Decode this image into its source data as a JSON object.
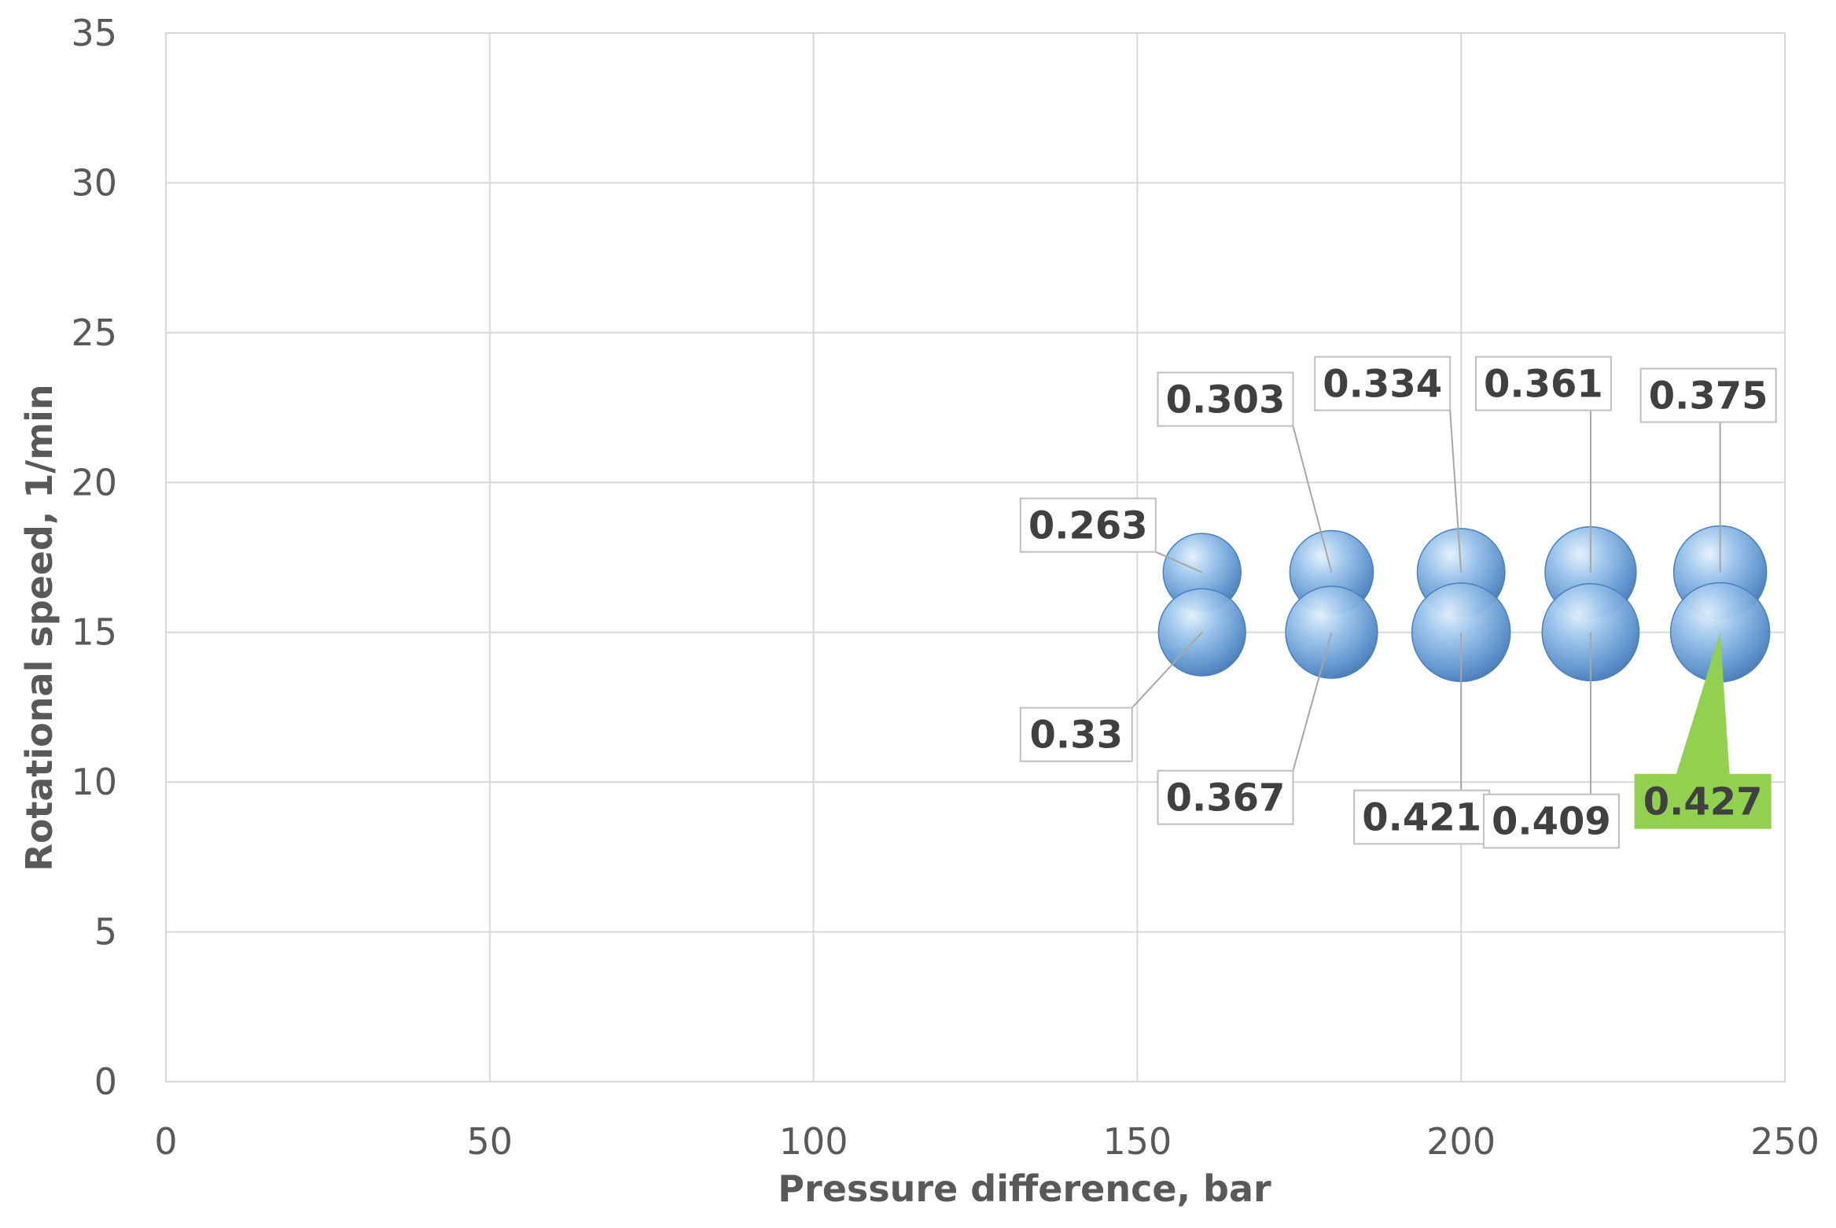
{
  "chart_data": {
    "type": "bubble",
    "xlabel": "Pressure difference, bar",
    "ylabel": "Rotational speed, 1/min",
    "xlim": [
      0,
      250
    ],
    "ylim": [
      0,
      35
    ],
    "x_ticks": [
      0,
      50,
      100,
      150,
      200,
      250
    ],
    "y_ticks": [
      0,
      5,
      10,
      15,
      20,
      25,
      30,
      35
    ],
    "grid": true,
    "legend": "none",
    "bubble_color": "#7fb2e5",
    "highlight_color": "#92d050",
    "series": [
      {
        "points": [
          {
            "x": 160,
            "y": 17,
            "size": 0.263,
            "label": "0.263"
          },
          {
            "x": 180,
            "y": 17,
            "size": 0.303,
            "label": "0.303"
          },
          {
            "x": 200,
            "y": 17,
            "size": 0.334,
            "label": "0.334"
          },
          {
            "x": 220,
            "y": 17,
            "size": 0.361,
            "label": "0.361"
          },
          {
            "x": 240,
            "y": 17,
            "size": 0.375,
            "label": "0.375"
          }
        ]
      },
      {
        "points": [
          {
            "x": 160,
            "y": 15,
            "size": 0.33,
            "label": "0.33"
          },
          {
            "x": 180,
            "y": 15,
            "size": 0.367,
            "label": "0.367"
          },
          {
            "x": 200,
            "y": 15,
            "size": 0.421,
            "label": "0.421"
          },
          {
            "x": 220,
            "y": 15,
            "size": 0.409,
            "label": "0.409"
          },
          {
            "x": 240,
            "y": 15,
            "size": 0.427,
            "label": "0.427",
            "highlight": true
          }
        ]
      }
    ]
  }
}
